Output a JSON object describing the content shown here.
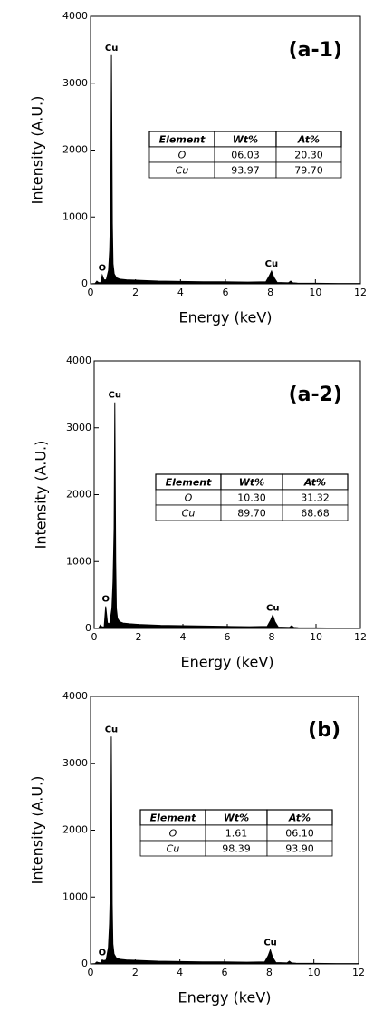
{
  "chart_data": [
    {
      "type": "area",
      "panel_label": "(a-1)",
      "x_label": "Energy (keV)",
      "y_label": "Intensity (A.U.)",
      "xlim": [
        0,
        12
      ],
      "ylim": [
        0,
        4000
      ],
      "xticks": [
        0,
        2,
        4,
        6,
        8,
        10,
        12
      ],
      "yticks": [
        0,
        1000,
        2000,
        3000,
        4000
      ],
      "color": "#000000",
      "x": [
        0,
        0.2,
        0.28,
        0.35,
        0.45,
        0.52,
        0.6,
        0.7,
        0.8,
        0.85,
        0.9,
        0.93,
        0.97,
        1.0,
        1.05,
        1.15,
        1.3,
        1.6,
        2,
        3,
        4,
        5,
        6,
        7,
        7.8,
        7.95,
        8.05,
        8.15,
        8.3,
        8.8,
        8.9,
        9.0,
        9.2,
        10,
        11,
        12
      ],
      "values": [
        0,
        5,
        40,
        20,
        15,
        130,
        60,
        60,
        200,
        500,
        1200,
        3420,
        900,
        300,
        150,
        90,
        70,
        60,
        55,
        40,
        35,
        30,
        30,
        25,
        30,
        120,
        190,
        100,
        20,
        15,
        40,
        15,
        10,
        8,
        5,
        5
      ],
      "annotations": [
        {
          "text": "Cu",
          "x": 0.93,
          "y": 3420
        },
        {
          "text": "O",
          "x": 0.52,
          "y": 130
        },
        {
          "text": "Cu",
          "x": 8.05,
          "y": 190
        }
      ],
      "table": {
        "columns": [
          "Element",
          "Wt%",
          "At%"
        ],
        "rows": [
          [
            "O",
            "06.03",
            "20.30"
          ],
          [
            "Cu",
            "93.97",
            "79.70"
          ]
        ]
      }
    },
    {
      "type": "area",
      "panel_label": "(a-2)",
      "x_label": "Energy (keV)",
      "y_label": "Intensity (A.U.)",
      "xlim": [
        0,
        12
      ],
      "ylim": [
        0,
        4000
      ],
      "xticks": [
        0,
        2,
        4,
        6,
        8,
        10,
        12
      ],
      "yticks": [
        0,
        1000,
        2000,
        3000,
        4000
      ],
      "color": "#000000",
      "x": [
        0,
        0.2,
        0.28,
        0.35,
        0.45,
        0.52,
        0.6,
        0.7,
        0.8,
        0.85,
        0.9,
        0.93,
        0.97,
        1.0,
        1.05,
        1.15,
        1.3,
        1.6,
        2,
        3,
        4,
        5,
        6,
        7,
        7.8,
        7.95,
        8.05,
        8.15,
        8.3,
        8.8,
        8.9,
        9.0,
        9.2,
        10,
        11,
        12
      ],
      "values": [
        0,
        5,
        50,
        25,
        20,
        330,
        80,
        70,
        300,
        700,
        1500,
        3380,
        1000,
        300,
        150,
        100,
        80,
        70,
        60,
        45,
        40,
        35,
        30,
        25,
        30,
        120,
        200,
        100,
        20,
        15,
        40,
        15,
        10,
        8,
        5,
        5
      ],
      "annotations": [
        {
          "text": "Cu",
          "x": 0.93,
          "y": 3380
        },
        {
          "text": "O",
          "x": 0.52,
          "y": 330
        },
        {
          "text": "Cu",
          "x": 8.05,
          "y": 200
        }
      ],
      "table": {
        "columns": [
          "Element",
          "Wt%",
          "At%"
        ],
        "rows": [
          [
            "O",
            "10.30",
            "31.32"
          ],
          [
            "Cu",
            "89.70",
            "68.68"
          ]
        ]
      }
    },
    {
      "type": "area",
      "panel_label": "(b)",
      "x_label": "Energy (keV)",
      "y_label": "Intensity (A.U.)",
      "xlim": [
        0,
        12
      ],
      "ylim": [
        0,
        4000
      ],
      "xticks": [
        0,
        2,
        4,
        6,
        8,
        10,
        12
      ],
      "yticks": [
        0,
        1000,
        2000,
        3000,
        4000
      ],
      "color": "#000000",
      "x": [
        0,
        0.2,
        0.28,
        0.35,
        0.45,
        0.52,
        0.6,
        0.7,
        0.8,
        0.85,
        0.9,
        0.93,
        0.97,
        1.0,
        1.05,
        1.15,
        1.3,
        1.6,
        2,
        3,
        4,
        5,
        6,
        7,
        7.8,
        7.95,
        8.05,
        8.15,
        8.3,
        8.8,
        8.9,
        9.0,
        9.2,
        10,
        11,
        12
      ],
      "values": [
        0,
        5,
        30,
        20,
        15,
        60,
        50,
        60,
        250,
        600,
        1300,
        3400,
        900,
        300,
        150,
        90,
        70,
        60,
        55,
        40,
        35,
        30,
        30,
        25,
        30,
        120,
        210,
        100,
        20,
        15,
        40,
        15,
        10,
        8,
        5,
        5
      ],
      "annotations": [
        {
          "text": "Cu",
          "x": 0.93,
          "y": 3400
        },
        {
          "text": "O",
          "x": 0.52,
          "y": 60
        },
        {
          "text": "Cu",
          "x": 8.05,
          "y": 210
        }
      ],
      "table": {
        "columns": [
          "Element",
          "Wt%",
          "At%"
        ],
        "rows": [
          [
            "O",
            "1.61",
            "06.10"
          ],
          [
            "Cu",
            "98.39",
            "93.90"
          ]
        ]
      }
    }
  ]
}
